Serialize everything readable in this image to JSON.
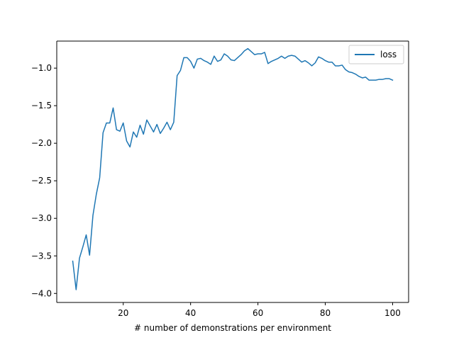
{
  "chart_data": {
    "type": "line",
    "xlabel": "# number of demonstrations per environment",
    "ylabel": "",
    "xlim": [
      0.25,
      104.75
    ],
    "ylim": [
      -4.12,
      -0.64
    ],
    "xticks": [
      20,
      40,
      60,
      80,
      100
    ],
    "xtick_labels": [
      "20",
      "40",
      "60",
      "80",
      "100"
    ],
    "yticks": [
      -4.0,
      -3.5,
      -3.0,
      -2.5,
      -2.0,
      -1.5,
      -1.0
    ],
    "ytick_labels": [
      "−4.0",
      "−3.5",
      "−3.0",
      "−2.5",
      "−2.0",
      "−1.5",
      "−1.0"
    ],
    "grid": false,
    "legend_position": "top-right",
    "series": [
      {
        "name": "loss",
        "color": "#1f77b4",
        "x": [
          5,
          6,
          7,
          8,
          9,
          10,
          11,
          12,
          13,
          14,
          15,
          16,
          17,
          18,
          19,
          20,
          21,
          22,
          23,
          24,
          25,
          26,
          27,
          28,
          29,
          30,
          31,
          32,
          33,
          34,
          35,
          36,
          37,
          38,
          39,
          40,
          41,
          42,
          43,
          44,
          45,
          46,
          47,
          48,
          49,
          50,
          51,
          52,
          53,
          54,
          55,
          56,
          57,
          58,
          59,
          60,
          61,
          62,
          63,
          64,
          65,
          66,
          67,
          68,
          69,
          70,
          71,
          72,
          73,
          74,
          75,
          76,
          77,
          78,
          79,
          80,
          81,
          82,
          83,
          84,
          85,
          86,
          87,
          88,
          89,
          90,
          91,
          92,
          93,
          94,
          95,
          96,
          97,
          98,
          99,
          100
        ],
        "values": [
          -3.57,
          -3.95,
          -3.53,
          -3.38,
          -3.22,
          -3.49,
          -2.96,
          -2.68,
          -2.46,
          -1.86,
          -1.73,
          -1.73,
          -1.53,
          -1.82,
          -1.84,
          -1.73,
          -1.97,
          -2.05,
          -1.85,
          -1.92,
          -1.76,
          -1.88,
          -1.69,
          -1.77,
          -1.85,
          -1.75,
          -1.87,
          -1.8,
          -1.72,
          -1.82,
          -1.72,
          -1.1,
          -1.03,
          -0.86,
          -0.86,
          -0.91,
          -1.0,
          -0.88,
          -0.87,
          -0.9,
          -0.92,
          -0.95,
          -0.84,
          -0.91,
          -0.89,
          -0.81,
          -0.84,
          -0.89,
          -0.9,
          -0.86,
          -0.82,
          -0.77,
          -0.74,
          -0.78,
          -0.82,
          -0.81,
          -0.81,
          -0.79,
          -0.94,
          -0.91,
          -0.89,
          -0.87,
          -0.84,
          -0.87,
          -0.84,
          -0.83,
          -0.84,
          -0.88,
          -0.92,
          -0.9,
          -0.93,
          -0.97,
          -0.93,
          -0.85,
          -0.87,
          -0.9,
          -0.92,
          -0.92,
          -0.97,
          -0.97,
          -0.96,
          -1.02,
          -1.05,
          -1.06,
          -1.08,
          -1.11,
          -1.13,
          -1.12,
          -1.16,
          -1.16,
          -1.16,
          -1.15,
          -1.15,
          -1.14,
          -1.14,
          -1.16
        ]
      }
    ]
  }
}
